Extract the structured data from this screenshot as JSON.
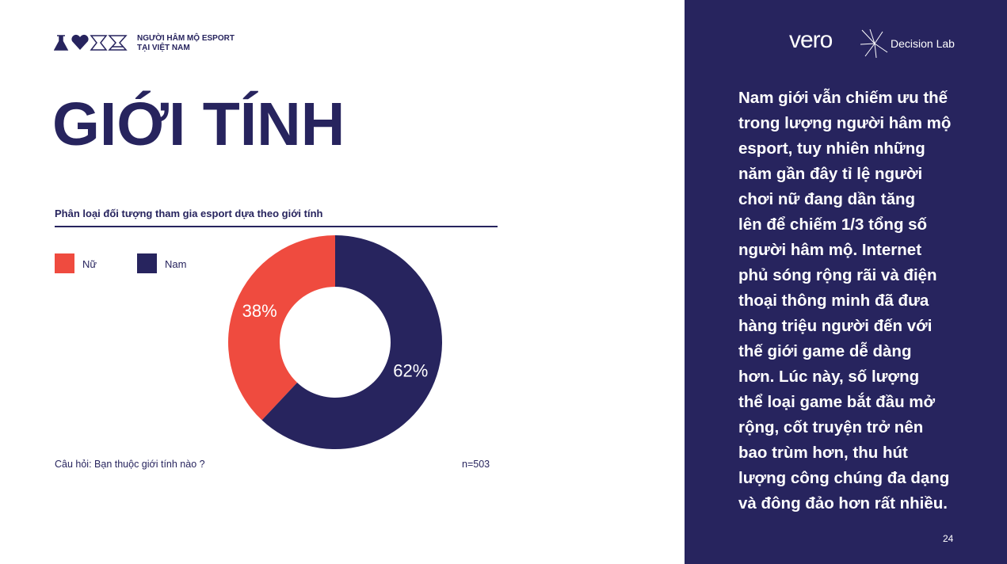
{
  "header": {
    "brand_line1": "NGƯỜI HÂM MỘ ESPORT",
    "brand_line2": "TẠI VIỆT NAM",
    "logo1": "vero",
    "logo2": "Decision Lab"
  },
  "heading": "GIỚI TÍNH",
  "chart_data": {
    "type": "pie",
    "donut": true,
    "title": "Phân loại đối tượng tham gia esport dựa theo giới tính",
    "categories": [
      "Nữ",
      "Nam"
    ],
    "values": [
      38,
      62
    ],
    "value_labels": [
      "38%",
      "62%"
    ],
    "colors": [
      "#ef4b3f",
      "#27245e"
    ],
    "legend": "top-left",
    "question": "Câu hỏi: Bạn thuộc giới tính nào ?",
    "sample": "n=503"
  },
  "paragraph": [
    "Nam giới vẫn chiếm ưu thế",
    "trong lượng người hâm mộ",
    "esport, tuy nhiên những",
    "năm gần đây tỉ lệ người",
    "chơi nữ đang dần tăng",
    "lên để chiếm 1/3 tổng số",
    "người hâm mộ. Internet",
    "phủ sóng rộng rãi và điện",
    "thoại thông minh đã đưa",
    "hàng triệu người đến với",
    "thế giới game dễ dàng",
    "hơn. Lúc này, số lượng",
    "thể loại game bắt đầu mở",
    "rộng, cốt truyện trở nên",
    "bao trùm hơn, thu hút",
    "lượng công chúng đa dạng",
    "và đông đảo hơn rất nhiều."
  ],
  "page_number": "24"
}
